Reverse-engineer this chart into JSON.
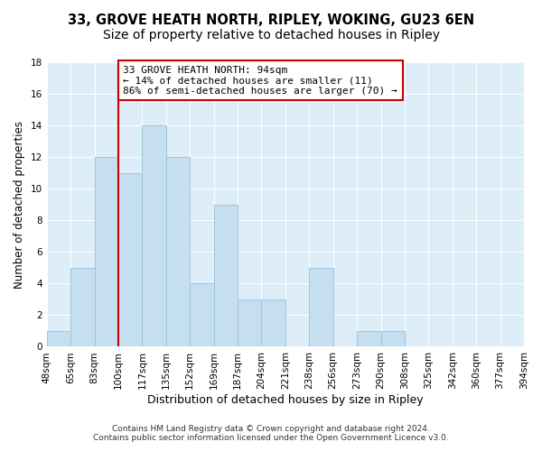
{
  "title": "33, GROVE HEATH NORTH, RIPLEY, WOKING, GU23 6EN",
  "subtitle": "Size of property relative to detached houses in Ripley",
  "xlabel": "Distribution of detached houses by size in Ripley",
  "ylabel": "Number of detached properties",
  "bar_color": "#c6dff0",
  "bar_edge_color": "#a0c4de",
  "bins": [
    "48sqm",
    "65sqm",
    "83sqm",
    "100sqm",
    "117sqm",
    "135sqm",
    "152sqm",
    "169sqm",
    "187sqm",
    "204sqm",
    "221sqm",
    "238sqm",
    "256sqm",
    "273sqm",
    "290sqm",
    "308sqm",
    "325sqm",
    "342sqm",
    "360sqm",
    "377sqm",
    "394sqm"
  ],
  "counts": [
    1,
    5,
    12,
    11,
    14,
    12,
    4,
    9,
    3,
    3,
    0,
    5,
    0,
    1,
    1,
    0,
    0,
    0,
    0,
    0
  ],
  "subject_line_bin_index": 3,
  "annotation_text": "33 GROVE HEATH NORTH: 94sqm\n← 14% of detached houses are smaller (11)\n86% of semi-detached houses are larger (70) →",
  "annotation_box_color": "white",
  "annotation_box_edge_color": "#cc0000",
  "subject_line_color": "#cc0000",
  "ylim": [
    0,
    18
  ],
  "yticks": [
    0,
    2,
    4,
    6,
    8,
    10,
    12,
    14,
    16,
    18
  ],
  "footer1": "Contains HM Land Registry data © Crown copyright and database right 2024.",
  "footer2": "Contains public sector information licensed under the Open Government Licence v3.0.",
  "background_color": "#ffffff",
  "plot_bg_color": "#ddeef8",
  "title_fontsize": 10.5,
  "xlabel_fontsize": 9,
  "ylabel_fontsize": 8.5,
  "tick_fontsize": 7.5,
  "annotation_fontsize": 8,
  "footer_fontsize": 6.5
}
